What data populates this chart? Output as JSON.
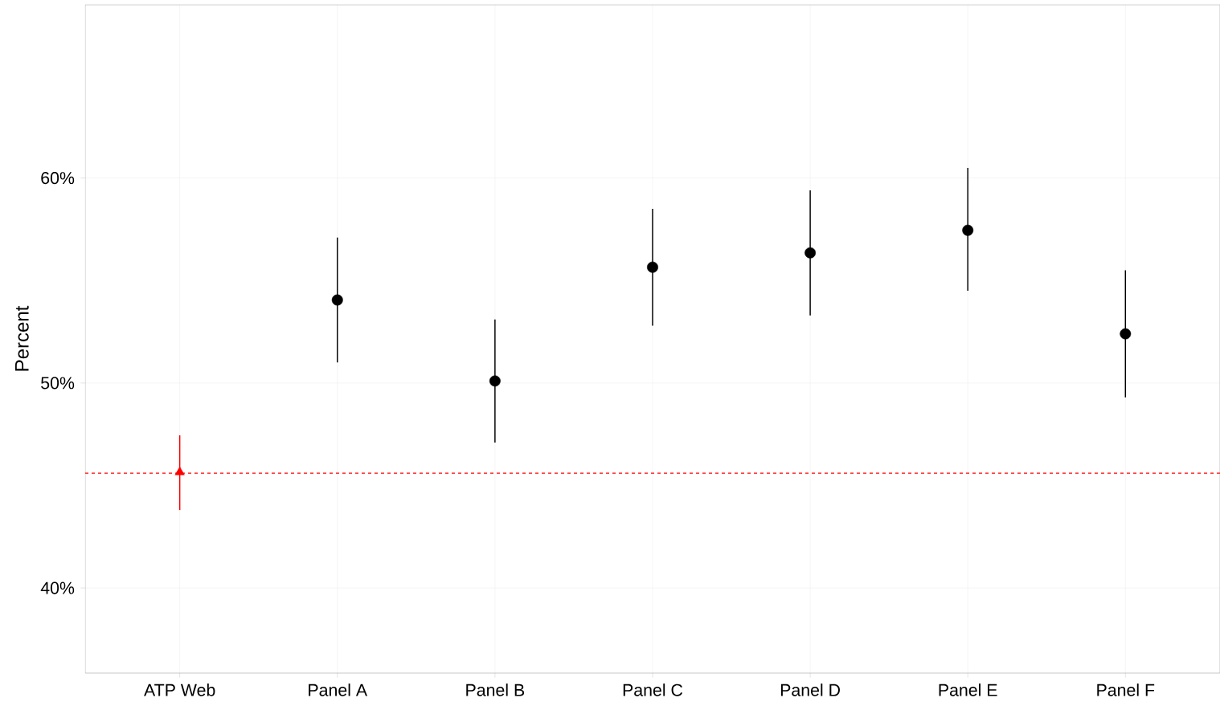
{
  "chart_data": {
    "type": "scatter",
    "ylabel": "Percent",
    "categories": [
      "ATP Web",
      "Panel A",
      "Panel B",
      "Panel C",
      "Panel D",
      "Panel E",
      "Panel F"
    ],
    "series": [
      {
        "color": "#ff0000",
        "marker": "triangle",
        "values": [
          45.65,
          null,
          null,
          null,
          null,
          null,
          null
        ],
        "errors": [
          [
            43.8,
            47.45
          ],
          null,
          null,
          null,
          null,
          null,
          null
        ]
      },
      {
        "color": "#000000",
        "marker": "circle",
        "values": [
          null,
          54.05,
          50.1,
          55.65,
          56.35,
          57.45,
          52.4
        ],
        "errors": [
          null,
          [
            51.0,
            57.1
          ],
          [
            47.1,
            53.1
          ],
          [
            52.8,
            58.5
          ],
          [
            53.3,
            59.4
          ],
          [
            54.5,
            60.5
          ],
          [
            49.3,
            55.5
          ]
        ]
      }
    ],
    "ylim": [
      35.85,
      68.45
    ],
    "yticks": [
      {
        "value": 40,
        "label": "40%"
      },
      {
        "value": 50,
        "label": "50%"
      },
      {
        "value": 60,
        "label": "60%"
      }
    ],
    "ref_lines": [
      {
        "axis": "y",
        "value": 45.6,
        "color": "#ff0000",
        "line_style": "dashed"
      }
    ],
    "grid": true
  }
}
